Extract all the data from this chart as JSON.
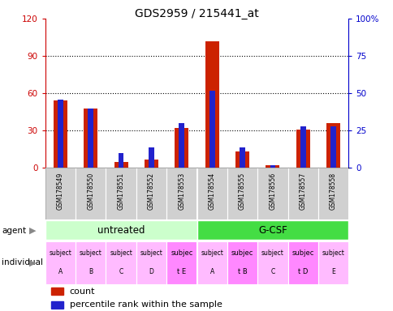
{
  "title": "GDS2959 / 215441_at",
  "samples": [
    "GSM178549",
    "GSM178550",
    "GSM178551",
    "GSM178552",
    "GSM178553",
    "GSM178554",
    "GSM178555",
    "GSM178556",
    "GSM178557",
    "GSM178558"
  ],
  "counts": [
    54,
    48,
    5,
    7,
    32,
    102,
    13,
    2,
    31,
    36
  ],
  "percentile_ranks": [
    46,
    40,
    10,
    14,
    30,
    52,
    14,
    2,
    28,
    28
  ],
  "ylim_left": [
    0,
    120
  ],
  "ylim_right": [
    0,
    100
  ],
  "yticks_left": [
    0,
    30,
    60,
    90,
    120
  ],
  "yticks_right": [
    0,
    25,
    50,
    75,
    100
  ],
  "agent_groups": [
    {
      "label": "untreated",
      "start": 0,
      "end": 5,
      "color": "#ccffcc"
    },
    {
      "label": "G-CSF",
      "start": 5,
      "end": 10,
      "color": "#44dd44"
    }
  ],
  "individuals_line1": [
    "subject",
    "subject",
    "subject",
    "subject",
    "subjec",
    "subject",
    "subjec",
    "subject",
    "subjec",
    "subject"
  ],
  "individuals_line2": [
    "A",
    "B",
    "C",
    "D",
    "t E",
    "A",
    "t B",
    "C",
    "t D",
    "E"
  ],
  "ind_highlight": [
    4,
    6,
    8
  ],
  "bar_color_red": "#cc2200",
  "bar_color_blue": "#2222cc",
  "bg_color": "#ffffff",
  "axis_color_left": "#cc0000",
  "axis_color_right": "#0000cc",
  "sample_bg": "#d0d0d0",
  "ind_color_normal": "#ffbbff",
  "ind_color_highlight": "#ff88ff"
}
